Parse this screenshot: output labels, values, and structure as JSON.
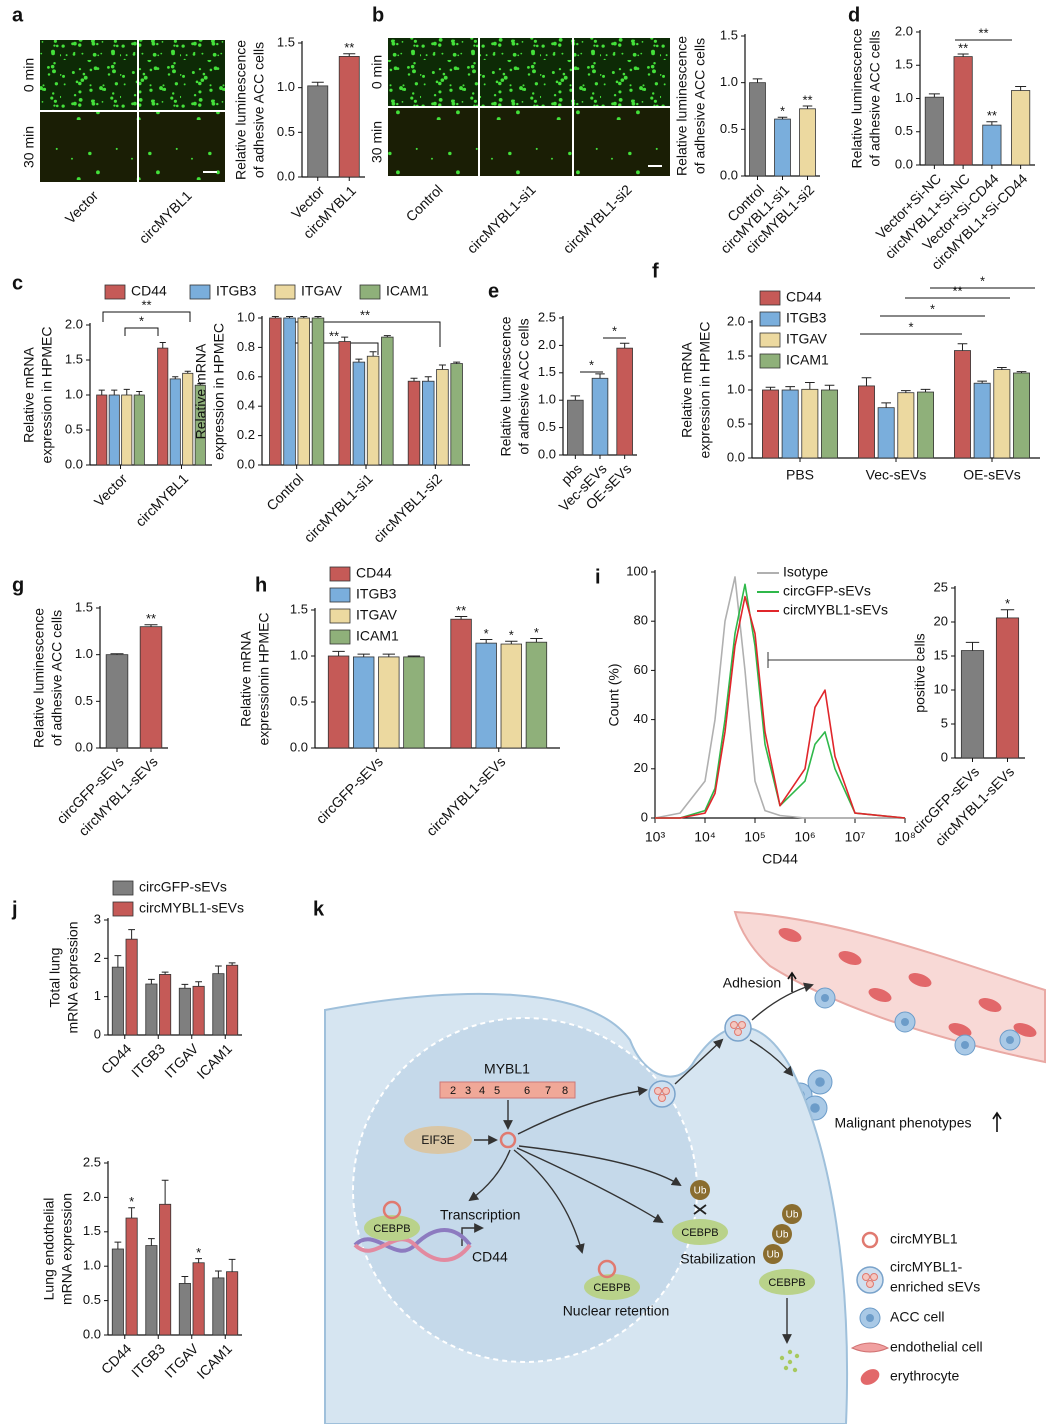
{
  "images": [
    {
      "panel": "a",
      "rows": [
        "0 min",
        "30 min"
      ],
      "columns": [
        "Vector",
        "circMYBL1"
      ]
    },
    {
      "panel": "b",
      "rows": [
        "0 min",
        "30 min"
      ],
      "columns": [
        "Control",
        "circMYBL1-si1",
        "circMYBL1-si2"
      ]
    }
  ],
  "chart_data": [
    {
      "type": "bar",
      "ylabel": [
        "Relative luminescence",
        "of adhesive ACC cells"
      ],
      "categories": [
        "Vector",
        "circMYBL1"
      ],
      "values": [
        1.02,
        1.35
      ],
      "errors": [
        0.04,
        0.03
      ],
      "sig": [
        null,
        "**"
      ],
      "colors": [
        "#7f7f7f",
        "#c55a57"
      ],
      "ylim": [
        0,
        1.5
      ],
      "yticks": [
        {
          "value": 0,
          "label": "0.0"
        },
        0.5,
        {
          "value": 1,
          "label": "1.0"
        },
        1.5
      ]
    },
    {
      "type": "bar",
      "ylabel": [
        "Relative luminescence",
        "of adhesive ACC cells"
      ],
      "categories": [
        "Control",
        "circMYBL1-si1",
        "circMYBL1-si2"
      ],
      "values": [
        1.0,
        0.61,
        0.72
      ],
      "errors": [
        0.04,
        0.02,
        0.03
      ],
      "sig": [
        null,
        "*",
        "**"
      ],
      "colors": [
        "#7f7f7f",
        "#7aaedc",
        "#ecd9a0"
      ],
      "ylim": [
        0,
        1.5
      ],
      "yticks": [
        {
          "value": 0,
          "label": "0.0"
        },
        0.5,
        {
          "value": 1,
          "label": "1.0"
        },
        1.5
      ]
    },
    {
      "type": "bar",
      "panel": "d",
      "ylabel": [
        "Relative luminescence",
        "of adhesive ACC cells"
      ],
      "categories": [
        "Vector+Si-NC",
        "circMYBL1+Si-NC",
        "Vector+Si-CD44",
        "circMYBL1+Si-CD44"
      ],
      "values": [
        1.02,
        1.63,
        0.6,
        1.12
      ],
      "errors": [
        0.05,
        0.04,
        0.05,
        0.06
      ],
      "sig": [
        null,
        "**",
        "**",
        null
      ],
      "annotations": [
        "**"
      ],
      "colors": [
        "#7f7f7f",
        "#c55a57",
        "#7aaedc",
        "#ecd9a0"
      ],
      "ylim": [
        0,
        2
      ],
      "yticks": [
        {
          "value": 0,
          "label": "0.0"
        },
        0.5,
        {
          "value": 1,
          "label": "1.0"
        },
        1.5,
        {
          "value": 2,
          "label": "2.0"
        }
      ]
    },
    {
      "type": "bar",
      "panel": "c",
      "ylabel": [
        "Relative mRNA",
        "expression in HPMEC"
      ],
      "categories": [
        "Vector",
        "circMYBL1"
      ],
      "annotations": [
        "**",
        "*"
      ],
      "series": [
        {
          "name": "CD44",
          "color": "#c55a57",
          "values": [
            1.0,
            1.67
          ],
          "errors": [
            0.07,
            0.08
          ]
        },
        {
          "name": "ITGB3",
          "color": "#7aaedc",
          "values": [
            1.0,
            1.23
          ],
          "errors": [
            0.07,
            0.03
          ]
        },
        {
          "name": "ITGAV",
          "color": "#ecd9a0",
          "values": [
            1.0,
            1.31
          ],
          "errors": [
            0.08,
            0.03
          ]
        },
        {
          "name": "ICAM1",
          "color": "#8fb07a",
          "values": [
            1.0,
            1.14
          ],
          "errors": [
            0.05,
            0.02
          ]
        }
      ],
      "ylim": [
        0,
        2
      ],
      "yticks": [
        {
          "value": 0,
          "label": "0.0"
        },
        0.5,
        {
          "value": 1,
          "label": "1.0"
        },
        1.5,
        {
          "value": 2,
          "label": "2.0"
        }
      ]
    },
    {
      "type": "bar",
      "ylabel": [
        "Relative mRNA",
        "expression in HPMEC"
      ],
      "categories": [
        "Control",
        "circMYBL1-si1",
        "circMYBL1-si2"
      ],
      "annotations": [
        "**",
        "**"
      ],
      "series": [
        {
          "color": "#c55a57",
          "values": [
            1.0,
            0.84,
            0.57
          ],
          "errors": [
            0.01,
            0.03,
            0.02
          ]
        },
        {
          "color": "#7aaedc",
          "values": [
            1.0,
            0.7,
            0.57
          ],
          "errors": [
            0.01,
            0.02,
            0.03
          ]
        },
        {
          "color": "#ecd9a0",
          "values": [
            1.0,
            0.74,
            0.65
          ],
          "errors": [
            0.01,
            0.03,
            0.03
          ]
        },
        {
          "color": "#8fb07a",
          "values": [
            1.0,
            0.87,
            0.69
          ],
          "errors": [
            0.01,
            0.01,
            0.01
          ]
        }
      ],
      "ylim": [
        0,
        1
      ],
      "yticks": [
        {
          "value": 0,
          "label": "0.0"
        },
        0.2,
        0.4,
        0.6,
        0.8,
        {
          "value": 1,
          "label": "1.0"
        }
      ]
    },
    {
      "type": "bar",
      "panel": "e",
      "ylabel": [
        "Relative luminescence",
        "of adhesive ACC cells"
      ],
      "categories": [
        "pbs",
        "Vec-sEVs",
        "OE-sEVs"
      ],
      "values": [
        1.0,
        1.4,
        1.95
      ],
      "errors": [
        0.08,
        0.08,
        0.09
      ],
      "annotations": [
        "*",
        "*"
      ],
      "colors": [
        "#7f7f7f",
        "#7aaedc",
        "#c55a57"
      ],
      "ylim": [
        0,
        2.5
      ],
      "yticks": [
        {
          "value": 0,
          "label": "0.0"
        },
        0.5,
        {
          "value": 1,
          "label": "1.0"
        },
        1.5,
        {
          "value": 2,
          "label": "2.0"
        },
        2.5
      ]
    },
    {
      "type": "bar",
      "panel": "f",
      "ylabel": [
        "Relative mRNA",
        "expression in HPMEC"
      ],
      "categories": [
        "PBS",
        "Vec-sEVs",
        "OE-sEVs"
      ],
      "annotations": [
        "*",
        "*",
        "**",
        "*"
      ],
      "series": [
        {
          "name": "CD44",
          "color": "#c55a57",
          "values": [
            1.0,
            1.06,
            1.58
          ],
          "errors": [
            0.04,
            0.12,
            0.1
          ]
        },
        {
          "name": "ITGB3",
          "color": "#7aaedc",
          "values": [
            1.0,
            0.74,
            1.1
          ],
          "errors": [
            0.05,
            0.07,
            0.03
          ]
        },
        {
          "name": "ITGAV",
          "color": "#ecd9a0",
          "values": [
            1.01,
            0.96,
            1.3
          ],
          "errors": [
            0.1,
            0.03,
            0.03
          ]
        },
        {
          "name": "ICAM1",
          "color": "#8fb07a",
          "values": [
            1.0,
            0.97,
            1.25
          ],
          "errors": [
            0.07,
            0.04,
            0.02
          ]
        }
      ],
      "ylim": [
        0,
        2
      ],
      "yticks": [
        {
          "value": 0,
          "label": "0.0"
        },
        0.5,
        {
          "value": 1,
          "label": "1.0"
        },
        1.5,
        {
          "value": 2,
          "label": "2.0"
        }
      ]
    },
    {
      "type": "bar",
      "panel": "g",
      "ylabel": [
        "Relative luminescence",
        "of adhesive ACC cells"
      ],
      "categories": [
        "circGFP-sEVs",
        "circMYBL1-sEVs"
      ],
      "values": [
        1.0,
        1.3
      ],
      "errors": [
        0.01,
        0.02
      ],
      "sig": [
        null,
        "**"
      ],
      "colors": [
        "#7f7f7f",
        "#c55a57"
      ],
      "ylim": [
        0,
        1.5
      ],
      "yticks": [
        {
          "value": 0,
          "label": "0.0"
        },
        0.5,
        {
          "value": 1,
          "label": "1.0"
        },
        1.5
      ]
    },
    {
      "type": "bar",
      "panel": "h",
      "ylabel": [
        "Relative mRNA",
        "expressionin HPMEC"
      ],
      "categories": [
        "circGFP-sEVs",
        "circMYBL1-sEVs"
      ],
      "series": [
        {
          "name": "CD44",
          "color": "#c55a57",
          "values": [
            1.0,
            1.4
          ],
          "errors": [
            0.05,
            0.03
          ],
          "sig": [
            null,
            "**"
          ]
        },
        {
          "name": "ITGB3",
          "color": "#7aaedc",
          "values": [
            0.99,
            1.14
          ],
          "errors": [
            0.03,
            0.04
          ],
          "sig": [
            null,
            "*"
          ]
        },
        {
          "name": "ITGAV",
          "color": "#ecd9a0",
          "values": [
            0.99,
            1.13
          ],
          "errors": [
            0.03,
            0.03
          ],
          "sig": [
            null,
            "*"
          ]
        },
        {
          "name": "ICAM1",
          "color": "#8fb07a",
          "values": [
            0.99,
            1.15
          ],
          "errors": [
            0.01,
            0.04
          ],
          "sig": [
            null,
            "*"
          ]
        }
      ],
      "ylim": [
        0,
        1.5
      ],
      "yticks": [
        {
          "value": 0,
          "label": "0.0"
        },
        0.5,
        {
          "value": 1,
          "label": "1.0"
        },
        1.5
      ]
    },
    {
      "type": "line",
      "panel": "i",
      "xlabel": "CD44",
      "ylabel": [
        "Count (%)"
      ],
      "xlog": true,
      "x": [
        1000,
        3162,
        10000,
        15849,
        25119,
        39811,
        63096,
        100000,
        158489,
        316228,
        1000000,
        1584893,
        2511886,
        3981072,
        10000000,
        100000000
      ],
      "series": [
        {
          "name": "Isotype",
          "color": "#b0b0b0",
          "values": [
            0,
            2,
            15,
            40,
            80,
            98,
            60,
            15,
            3,
            1,
            0,
            0,
            0,
            0,
            0,
            0
          ]
        },
        {
          "name": "circGFP-sEVs",
          "color": "#2fb84a",
          "values": [
            0,
            0,
            3,
            12,
            40,
            75,
            95,
            70,
            30,
            5,
            15,
            30,
            35,
            20,
            2,
            0
          ]
        },
        {
          "name": "circMYBL1-sEVs",
          "color": "#e0262b",
          "values": [
            0,
            0,
            2,
            10,
            35,
            70,
            90,
            75,
            35,
            5,
            20,
            45,
            52,
            25,
            2,
            0
          ]
        }
      ],
      "xlim": [
        1000,
        100000000
      ],
      "xticks": [
        {
          "value": 1000,
          "label": "10³"
        },
        {
          "value": 10000,
          "label": "10⁴"
        },
        {
          "value": 100000,
          "label": "10⁵"
        },
        {
          "value": 1000000,
          "label": "10⁶"
        },
        {
          "value": 10000000,
          "label": "10⁷"
        },
        {
          "value": 100000000,
          "label": "10⁸"
        }
      ],
      "ylim": [
        0,
        100
      ],
      "yticks": [
        0,
        20,
        40,
        60,
        80,
        100
      ]
    },
    {
      "type": "bar",
      "ylabel": [
        "positive cells"
      ],
      "categories": [
        "circGFP-sEVs",
        "circMYBL1-sEVs"
      ],
      "values": [
        15.8,
        20.6
      ],
      "errors": [
        1.2,
        1.2
      ],
      "sig": [
        null,
        "*"
      ],
      "colors": [
        "#7f7f7f",
        "#c55a57"
      ],
      "ylim": [
        0,
        25
      ],
      "yticks": [
        0,
        5,
        10,
        15,
        20,
        25
      ]
    },
    {
      "type": "bar",
      "panel": "j",
      "ylabel": [
        "Total lung",
        "mRNA expression"
      ],
      "categories": [
        "CD44",
        "ITGB3",
        "ITGAV",
        "ICAM1"
      ],
      "series": [
        {
          "name": "circGFP-sEVs",
          "color": "#7f7f7f",
          "values": [
            1.77,
            1.33,
            1.22,
            1.6
          ],
          "errors": [
            0.3,
            0.12,
            0.1,
            0.2
          ]
        },
        {
          "name": "circMYBL1-sEVs",
          "color": "#c55a57",
          "values": [
            2.5,
            1.58,
            1.27,
            1.82
          ],
          "errors": [
            0.25,
            0.06,
            0.12,
            0.06
          ]
        }
      ],
      "ylim": [
        0,
        3
      ],
      "yticks": [
        0,
        1,
        2,
        3
      ]
    },
    {
      "type": "bar",
      "ylabel": [
        "Lung endothelial",
        "mRNA expression"
      ],
      "categories": [
        "CD44",
        "ITGB3",
        "ITGAV",
        "ICAM1"
      ],
      "series": [
        {
          "color": "#7f7f7f",
          "values": [
            1.25,
            1.3,
            0.75,
            0.83
          ],
          "errors": [
            0.1,
            0.1,
            0.1,
            0.1
          ]
        },
        {
          "color": "#c55a57",
          "values": [
            1.7,
            1.9,
            1.05,
            0.92
          ],
          "errors": [
            0.15,
            0.35,
            0.06,
            0.18
          ],
          "sig": [
            "*",
            null,
            "*",
            null
          ]
        }
      ],
      "ylim": [
        0,
        2.5
      ],
      "yticks": [
        {
          "value": 0,
          "label": "0.0"
        },
        0.5,
        {
          "value": 1,
          "label": "1.0"
        },
        1.5,
        {
          "value": 2,
          "label": "2.0"
        },
        2.5
      ]
    }
  ],
  "diagram": {
    "panel": "k",
    "gene": "MYBL1",
    "exons": [
      "2",
      "3",
      "4",
      "5",
      "6",
      "7",
      "8"
    ],
    "factor": "EIF3E",
    "transcription": "Transcription",
    "target": "CD44",
    "protein": [
      "CEBPB",
      "CEBPB",
      "CEBPB",
      "CEBPB"
    ],
    "nuclear_retention": "Nuclear retention",
    "stabilization": "Stabilization",
    "ubiquitin": [
      "Ub",
      "Ub",
      "Ub",
      "Ub"
    ],
    "adhesion": "Adhesion",
    "malignant": "Malignant phenotypes",
    "legend": [
      "circMYBL1",
      "circMYBL1-",
      "enriched sEVs",
      "ACC cell",
      "endothelial cell",
      "erythrocyte"
    ]
  }
}
